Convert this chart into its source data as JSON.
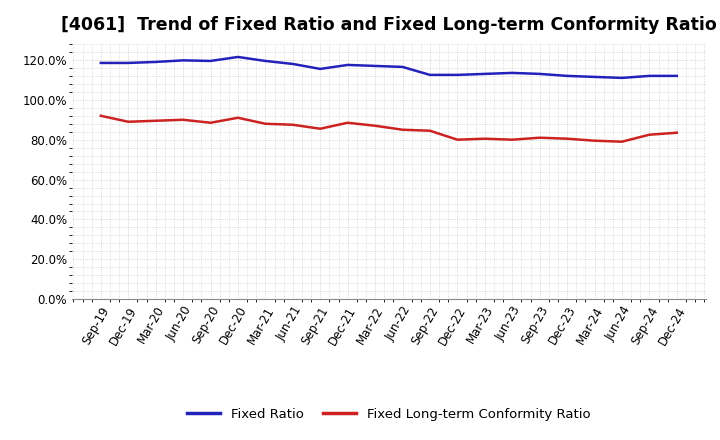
{
  "title": "[4061]  Trend of Fixed Ratio and Fixed Long-term Conformity Ratio",
  "x_labels": [
    "Sep-19",
    "Dec-19",
    "Mar-20",
    "Jun-20",
    "Sep-20",
    "Dec-20",
    "Mar-21",
    "Jun-21",
    "Sep-21",
    "Dec-21",
    "Mar-22",
    "Jun-22",
    "Sep-22",
    "Dec-22",
    "Mar-23",
    "Jun-23",
    "Sep-23",
    "Dec-23",
    "Mar-24",
    "Jun-24",
    "Sep-24",
    "Dec-24"
  ],
  "fixed_ratio": [
    118.5,
    118.5,
    119.0,
    119.8,
    119.5,
    121.5,
    119.5,
    118.0,
    115.5,
    117.5,
    117.0,
    116.5,
    112.5,
    112.5,
    113.0,
    113.5,
    113.0,
    112.0,
    111.5,
    111.0,
    112.0,
    112.0
  ],
  "fixed_lt_ratio": [
    92.0,
    89.0,
    89.5,
    90.0,
    88.5,
    91.0,
    88.0,
    87.5,
    85.5,
    88.5,
    87.0,
    85.0,
    84.5,
    80.0,
    80.5,
    80.0,
    81.0,
    80.5,
    79.5,
    79.0,
    82.5,
    83.5
  ],
  "fixed_ratio_color": "#2222bb",
  "fixed_lt_ratio_color": "#cc2222",
  "background_color": "#ffffff",
  "plot_bg_color": "#ffffff",
  "grid_color": "#bbbbbb",
  "ylim": [
    0,
    128
  ],
  "yticks": [
    0,
    20,
    40,
    60,
    80,
    100,
    120
  ],
  "legend_fixed_ratio": "Fixed Ratio",
  "legend_fixed_lt_ratio": "Fixed Long-term Conformity Ratio",
  "title_fontsize": 12.5,
  "axis_label_fontsize": 8.5,
  "legend_fontsize": 9.5,
  "line_width": 1.8
}
